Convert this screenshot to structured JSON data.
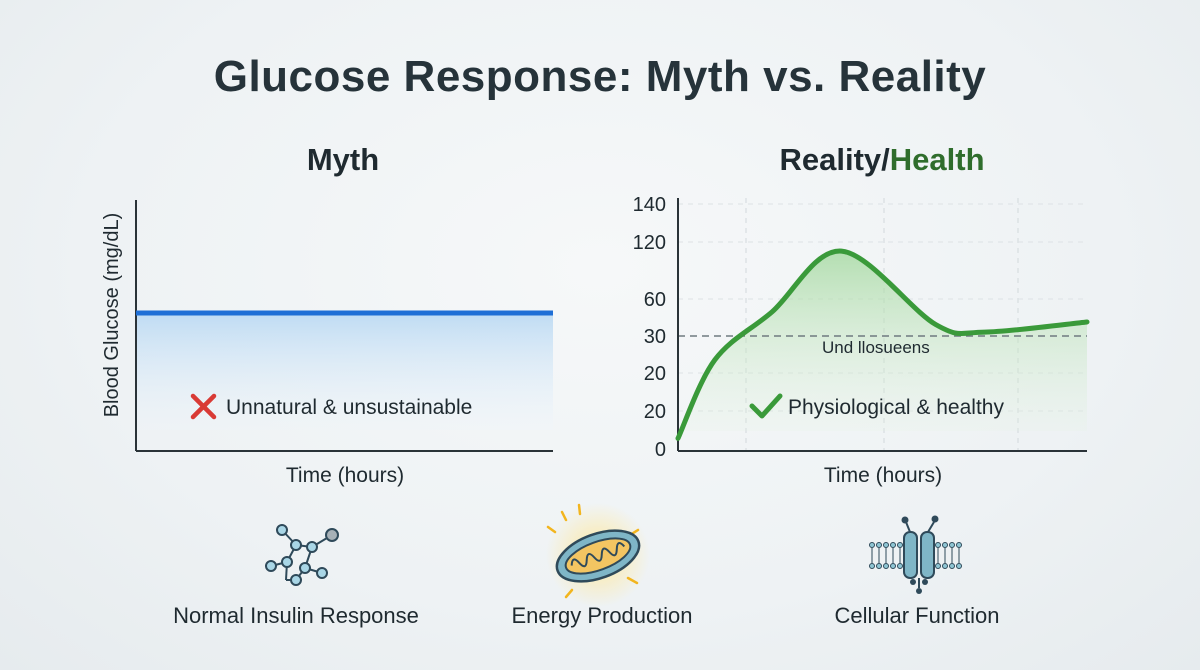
{
  "title": "Glucose Response: Myth vs. Reality",
  "myth": {
    "title": "Myth",
    "ylabel": "Blood Glucose (mg/dL)",
    "xlabel": "Time (hours)",
    "annotation": "Unnatural & unsustainable",
    "annotation_icon": "x-mark-icon",
    "line_color": "#1f6fd6",
    "mark_color": "#d93a35"
  },
  "reality": {
    "title_part1": "Reality/",
    "title_part2": "Health",
    "xlabel": "Time (hours)",
    "annotation": "Physiological & healthy",
    "annotation_icon": "check-mark-icon",
    "threshold_label": "Und llosueens",
    "line_color": "#3a9a3a",
    "title_accent_color": "#2f6d2c"
  },
  "chart_data": [
    {
      "type": "line",
      "title": "Myth",
      "xlabel": "Time (hours)",
      "ylabel": "Blood Glucose (mg/dL)",
      "x": [
        0,
        1
      ],
      "series": [
        {
          "values": [
            0.55,
            0.55
          ]
        }
      ],
      "ylim": [
        0,
        1
      ],
      "grid": false
    },
    {
      "type": "area",
      "title": "Reality/Health",
      "xlabel": "Time (hours)",
      "y_ticks": [
        "140",
        "120",
        "60",
        "30",
        "20",
        "20",
        "0"
      ],
      "x": [
        0,
        0.09,
        0.23,
        0.4,
        0.63,
        0.75,
        1.0
      ],
      "series": [
        {
          "values": [
            0.05,
            0.36,
            0.55,
            0.79,
            0.5,
            0.47,
            0.51
          ]
        }
      ],
      "reference_line": {
        "tick": "30",
        "style": "dashed"
      },
      "grid": true
    }
  ],
  "bottom_items": [
    {
      "label": "Normal Insulin Response",
      "icon": "molecule-icon"
    },
    {
      "label": "Energy Production",
      "icon": "mitochondria-icon"
    },
    {
      "label": "Cellular Function",
      "icon": "membrane-channel-icon"
    }
  ]
}
